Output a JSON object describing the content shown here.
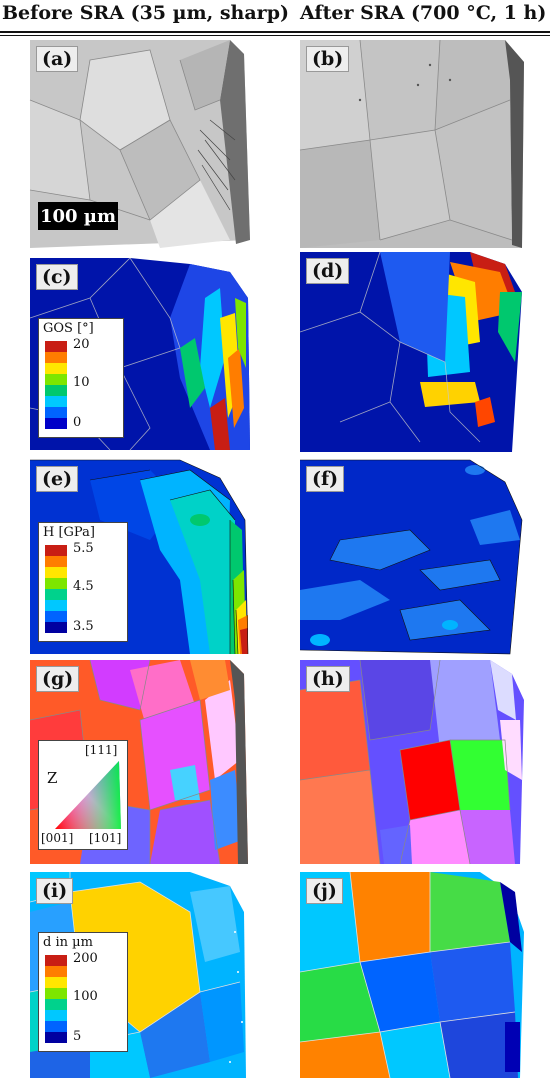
{
  "headers": {
    "left": "Before SRA (35 µm, sharp)",
    "right": "After SRA (700 °C, 1 h)"
  },
  "panels": {
    "a": "(a)",
    "b": "(b)",
    "c": "(c)",
    "d": "(d)",
    "e": "(e)",
    "f": "(f)",
    "g": "(g)",
    "h": "(h)",
    "i": "(i)",
    "j": "(j)"
  },
  "scalebar": "100 µm",
  "legend_gos": {
    "title": "GOS [°]",
    "ticks": [
      "20",
      "10",
      "0"
    ],
    "colors": [
      "#c81e14",
      "#ff7d00",
      "#ffe600",
      "#7de600",
      "#00c86e",
      "#00c8ff",
      "#0064ff",
      "#0000c8"
    ]
  },
  "legend_h": {
    "title": "H [GPa]",
    "ticks": [
      "5.5",
      "4.5",
      "3.5"
    ],
    "colors": [
      "#c81e14",
      "#ff7d00",
      "#ffe600",
      "#7de600",
      "#00d28c",
      "#00c8ff",
      "#0064ff",
      "#0000a0"
    ]
  },
  "legend_ipf": {
    "axis": "Z",
    "top": "[111]",
    "left": "[001]",
    "right": "[101]"
  },
  "legend_d": {
    "title": "d in µm",
    "ticks": [
      "200",
      "100",
      "5"
    ],
    "colors": [
      "#c81e14",
      "#ff7d00",
      "#ffe600",
      "#7de600",
      "#00d28c",
      "#00c8ff",
      "#0064ff",
      "#0000a0"
    ]
  }
}
